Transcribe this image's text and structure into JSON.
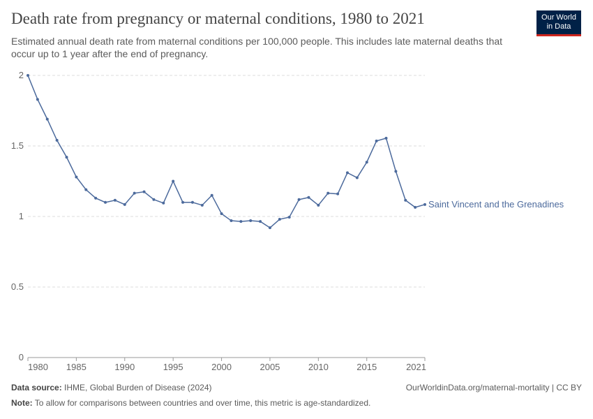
{
  "chart_data": {
    "type": "line",
    "title": "Death rate from pregnancy or maternal conditions, 1980 to 2021",
    "subtitle": "Estimated annual death rate from maternal conditions per 100,000 people. This includes late maternal deaths that occur up to 1 year after the end of pregnancy.",
    "logo": [
      "Our World",
      "in Data"
    ],
    "x": [
      1980,
      1981,
      1982,
      1983,
      1984,
      1985,
      1986,
      1987,
      1988,
      1989,
      1990,
      1991,
      1992,
      1993,
      1994,
      1995,
      1996,
      1997,
      1998,
      1999,
      2000,
      2001,
      2002,
      2003,
      2004,
      2005,
      2006,
      2007,
      2008,
      2009,
      2010,
      2011,
      2012,
      2013,
      2014,
      2015,
      2016,
      2017,
      2018,
      2019,
      2020,
      2021
    ],
    "series": [
      {
        "name": "Saint Vincent and the Grenadines",
        "color": "#4c6a9c",
        "values": [
          2.0,
          1.83,
          1.69,
          1.54,
          1.42,
          1.28,
          1.19,
          1.13,
          1.1,
          1.115,
          1.085,
          1.165,
          1.175,
          1.12,
          1.095,
          1.25,
          1.1,
          1.1,
          1.08,
          1.15,
          1.02,
          0.97,
          0.965,
          0.97,
          0.965,
          0.92,
          0.98,
          0.995,
          1.12,
          1.135,
          1.08,
          1.165,
          1.16,
          1.31,
          1.275,
          1.385,
          1.535,
          1.555,
          1.32,
          1.115,
          1.065,
          1.085
        ]
      }
    ],
    "xlim": [
      1980,
      2021
    ],
    "xticks": [
      1980,
      1985,
      1990,
      1995,
      2000,
      2005,
      2010,
      2015,
      2021
    ],
    "ylim": [
      0,
      2
    ],
    "yticks": [
      0,
      0.5,
      1,
      1.5,
      2
    ],
    "grid": true,
    "source_label": "Data source:",
    "source": "IHME, Global Burden of Disease (2024)",
    "url": "OurWorldinData.org/maternal-mortality | CC BY",
    "note_label": "Note:",
    "note": "To allow for comparisons between countries and over time, this metric is age-standardized."
  }
}
